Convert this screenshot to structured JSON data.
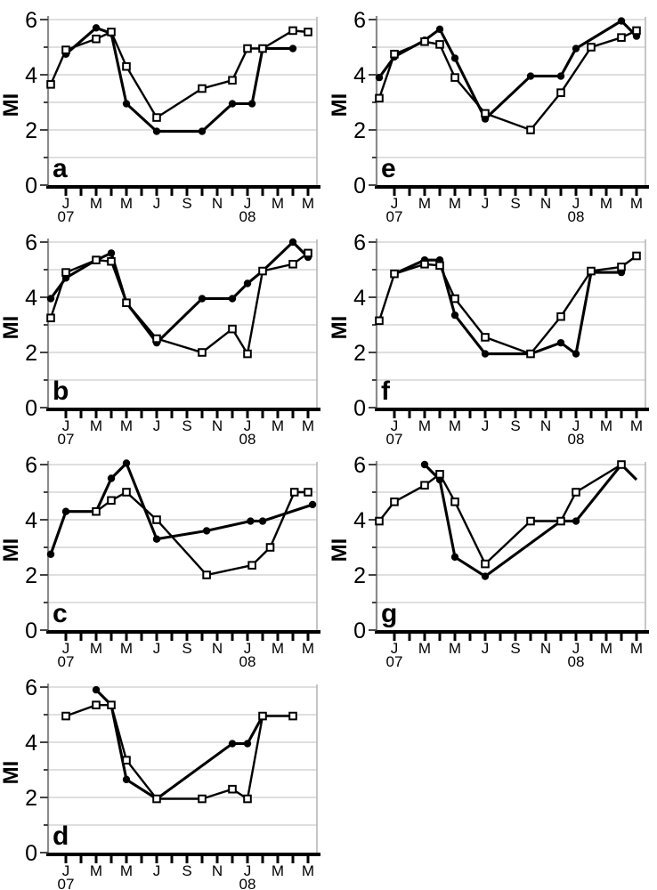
{
  "figure": {
    "ylabel": "MI",
    "y_tick_labels": [
      "0",
      "2",
      "4",
      "6"
    ],
    "y_minor_ticks": [
      1,
      3,
      5
    ],
    "ylim": [
      0,
      6
    ],
    "gridlines_y": [
      1,
      2,
      3,
      4,
      5,
      6
    ],
    "x_tick_month_labels": [
      "J",
      "M",
      "M",
      "J",
      "S",
      "N",
      "J",
      "M",
      "M"
    ],
    "x_labeled_month_indices": [
      0,
      2,
      4,
      6,
      8,
      10,
      12,
      14,
      16
    ],
    "x_year_labels": [
      {
        "text": "07",
        "month_index": 0
      },
      {
        "text": "08",
        "month_index": 12
      }
    ],
    "x_axis_note": "month_index 0 = Jan 2007, 16 = May 2008, minor tick every month",
    "grid_on": true,
    "legend": "none",
    "colors": {
      "line": "#000000",
      "grid": "#cccccc",
      "y_spine": "#8c8c8c",
      "right_border": "#b3b3b3",
      "x_axis": "#000000",
      "background": "#ffffff",
      "square_fill": "#ffffff"
    }
  },
  "chart_data": [
    {
      "type": "line",
      "panel": "a",
      "title": "",
      "xlabel": "",
      "ylabel": "MI",
      "ylim": [
        0,
        6
      ],
      "series": [
        {
          "name": "filled-circle-series",
          "marker": "circle",
          "points": [
            [
              0,
              4.75
            ],
            [
              2,
              5.7
            ],
            [
              3,
              5.5
            ],
            [
              4,
              2.95
            ],
            [
              6,
              1.95
            ],
            [
              9,
              1.95
            ],
            [
              11,
              2.95
            ],
            [
              12.3,
              2.95
            ],
            [
              13,
              4.95
            ],
            [
              15,
              4.95
            ]
          ]
        },
        {
          "name": "open-square-series",
          "marker": "square",
          "points": [
            [
              -1,
              3.65
            ],
            [
              0,
              4.9
            ],
            [
              2,
              5.3
            ],
            [
              3,
              5.55
            ],
            [
              4,
              4.3
            ],
            [
              6,
              2.45
            ],
            [
              9,
              3.5
            ],
            [
              11,
              3.8
            ],
            [
              12,
              4.95
            ],
            [
              13,
              4.95
            ],
            [
              15,
              5.6
            ],
            [
              16,
              5.55
            ]
          ]
        }
      ]
    },
    {
      "type": "line",
      "panel": "b",
      "title": "",
      "xlabel": "",
      "ylabel": "MI",
      "ylim": [
        0,
        6
      ],
      "series": [
        {
          "name": "filled-circle-series",
          "marker": "circle",
          "points": [
            [
              -1,
              3.95
            ],
            [
              0,
              4.7
            ],
            [
              2,
              5.35
            ],
            [
              3,
              5.6
            ],
            [
              4,
              3.8,
              0
            ],
            [
              6,
              2.35
            ],
            [
              9,
              3.95
            ],
            [
              11,
              3.95
            ],
            [
              12,
              4.5
            ],
            [
              13,
              4.95
            ],
            [
              15,
              6.0
            ],
            [
              16,
              5.45
            ]
          ]
        },
        {
          "name": "open-square-series",
          "marker": "square",
          "points": [
            [
              -1,
              3.25
            ],
            [
              0,
              4.9
            ],
            [
              2,
              5.35
            ],
            [
              3,
              5.3
            ],
            [
              4,
              3.8
            ],
            [
              6,
              2.5
            ],
            [
              9,
              2.0
            ],
            [
              11,
              2.85
            ],
            [
              12,
              1.95
            ],
            [
              13,
              4.95
            ],
            [
              15,
              5.2
            ],
            [
              16,
              5.6
            ]
          ]
        }
      ]
    },
    {
      "type": "line",
      "panel": "c",
      "title": "",
      "xlabel": "",
      "ylabel": "MI",
      "ylim": [
        0,
        6
      ],
      "series": [
        {
          "name": "filled-circle-series",
          "marker": "circle",
          "points": [
            [
              -1,
              2.75
            ],
            [
              0,
              4.3
            ],
            [
              2,
              4.3,
              0
            ],
            [
              3,
              5.5
            ],
            [
              4,
              6.05
            ],
            [
              6,
              3.3
            ],
            [
              9.3,
              3.6
            ],
            [
              12.2,
              3.95
            ],
            [
              13,
              3.95
            ],
            [
              16.3,
              4.55
            ]
          ]
        },
        {
          "name": "open-square-series",
          "marker": "square",
          "points": [
            [
              2,
              4.3
            ],
            [
              3,
              4.7
            ],
            [
              4,
              5.0
            ],
            [
              6,
              4.0
            ],
            [
              9.3,
              2.0
            ],
            [
              12.3,
              2.35
            ],
            [
              13.5,
              3.0
            ],
            [
              15.1,
              5.0
            ],
            [
              16,
              5.0
            ]
          ]
        }
      ]
    },
    {
      "type": "line",
      "panel": "d",
      "title": "",
      "xlabel": "",
      "ylabel": "MI",
      "ylim": [
        0,
        6
      ],
      "series": [
        {
          "name": "filled-circle-series",
          "marker": "circle",
          "points": [
            [
              2,
              5.9
            ],
            [
              3,
              5.35,
              0
            ],
            [
              4,
              2.65
            ],
            [
              6,
              1.95
            ],
            [
              11,
              3.95
            ],
            [
              12,
              3.95
            ],
            [
              13,
              4.95,
              0
            ]
          ]
        },
        {
          "name": "open-square-series",
          "marker": "square",
          "points": [
            [
              0,
              4.95
            ],
            [
              2,
              5.35
            ],
            [
              3,
              5.35
            ],
            [
              4,
              3.35
            ],
            [
              6,
              1.95
            ],
            [
              9,
              1.95
            ],
            [
              11,
              2.3
            ],
            [
              12,
              1.95
            ],
            [
              13,
              4.95
            ],
            [
              15,
              4.95
            ]
          ]
        }
      ]
    },
    {
      "type": "line",
      "panel": "e",
      "title": "",
      "xlabel": "",
      "ylabel": "MI",
      "ylim": [
        0,
        6
      ],
      "series": [
        {
          "name": "filled-circle-series",
          "marker": "circle",
          "points": [
            [
              -1,
              3.9
            ],
            [
              0,
              4.65
            ],
            [
              2,
              5.25
            ],
            [
              3,
              5.65
            ],
            [
              4,
              4.6
            ],
            [
              6,
              2.4
            ],
            [
              9,
              3.95
            ],
            [
              11,
              3.95
            ],
            [
              12,
              4.95
            ],
            [
              15,
              5.95
            ],
            [
              16,
              5.4
            ]
          ]
        },
        {
          "name": "open-square-series",
          "marker": "square",
          "points": [
            [
              -1,
              3.15
            ],
            [
              0,
              4.75
            ],
            [
              2,
              5.2
            ],
            [
              3,
              5.1
            ],
            [
              4,
              3.9
            ],
            [
              6,
              2.6
            ],
            [
              9,
              2.0
            ],
            [
              11,
              3.35
            ],
            [
              13,
              5.0
            ],
            [
              15,
              5.35
            ],
            [
              16,
              5.6
            ]
          ]
        }
      ]
    },
    {
      "type": "line",
      "panel": "f",
      "title": "",
      "xlabel": "",
      "ylabel": "MI",
      "ylim": [
        0,
        6
      ],
      "series": [
        {
          "name": "filled-circle-series",
          "marker": "circle",
          "points": [
            [
              0,
              4.85
            ],
            [
              2,
              5.35
            ],
            [
              3,
              5.35
            ],
            [
              4,
              3.35
            ],
            [
              6,
              1.95
            ],
            [
              9,
              1.95
            ],
            [
              11,
              2.35
            ],
            [
              12,
              1.95
            ],
            [
              13,
              4.9,
              0
            ],
            [
              15,
              4.9
            ]
          ]
        },
        {
          "name": "open-square-series",
          "marker": "square",
          "points": [
            [
              -1,
              3.15
            ],
            [
              0,
              4.85
            ],
            [
              2,
              5.2
            ],
            [
              3,
              5.15
            ],
            [
              4,
              3.95
            ],
            [
              6,
              2.55
            ],
            [
              9,
              1.95
            ],
            [
              11,
              3.3
            ],
            [
              13,
              4.95
            ],
            [
              15,
              5.1
            ],
            [
              16,
              5.5
            ]
          ]
        }
      ]
    },
    {
      "type": "line",
      "panel": "g",
      "title": "",
      "xlabel": "",
      "ylabel": "MI",
      "ylim": [
        0,
        6
      ],
      "series": [
        {
          "name": "filled-circle-series",
          "marker": "circle",
          "points": [
            [
              2,
              6.0
            ],
            [
              3,
              5.45
            ],
            [
              4,
              2.65
            ],
            [
              6,
              1.95
            ],
            [
              11,
              3.95,
              0
            ],
            [
              12,
              3.95
            ],
            [
              15,
              6.0,
              0
            ],
            [
              16,
              5.45,
              0
            ]
          ]
        },
        {
          "name": "open-square-series",
          "marker": "square",
          "points": [
            [
              -1,
              3.95
            ],
            [
              0,
              4.65
            ],
            [
              2,
              5.25
            ],
            [
              3,
              5.65
            ],
            [
              4,
              4.65
            ],
            [
              6,
              2.4
            ],
            [
              9,
              3.95
            ],
            [
              11,
              3.95
            ],
            [
              12,
              5.0
            ],
            [
              15,
              6.0
            ]
          ]
        }
      ]
    }
  ]
}
